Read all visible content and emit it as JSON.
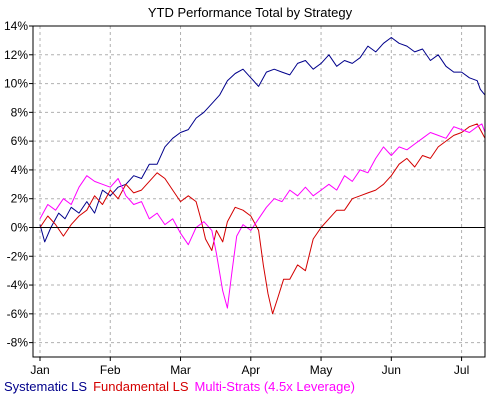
{
  "chart_data": {
    "type": "line",
    "title": "YTD Performance Total by Strategy",
    "xlabel": "",
    "ylabel": "",
    "x_tick_labels": [
      "Jan",
      "Feb",
      "Mar",
      "Apr",
      "May",
      "Jun",
      "Jul"
    ],
    "y_tick_labels": [
      "14%",
      "12%",
      "10%",
      "8%",
      "6%",
      "4%",
      "2%",
      "0%",
      "-2%",
      "-4%",
      "-6%",
      "-8%"
    ],
    "y_ticks": [
      14,
      12,
      10,
      8,
      6,
      4,
      2,
      0,
      -2,
      -4,
      -6,
      -8
    ],
    "ylim": [
      -9.0,
      14.0
    ],
    "xlim": [
      1,
      29.5
    ],
    "grid": true,
    "legend_position": "bottom",
    "series": [
      {
        "name": "Systematic LS",
        "color": "#00008b",
        "points": [
          [
            1.0,
            0.2
          ],
          [
            1.3,
            -1.0
          ],
          [
            1.7,
            0.0
          ],
          [
            2.2,
            1.0
          ],
          [
            2.6,
            0.6
          ],
          [
            3.0,
            1.4
          ],
          [
            3.5,
            1.0
          ],
          [
            4.0,
            1.8
          ],
          [
            4.5,
            1.0
          ],
          [
            5.0,
            2.6
          ],
          [
            5.5,
            2.2
          ],
          [
            6.0,
            2.8
          ],
          [
            6.5,
            3.0
          ],
          [
            7.0,
            3.6
          ],
          [
            7.5,
            3.4
          ],
          [
            8.0,
            4.4
          ],
          [
            8.5,
            4.4
          ],
          [
            9.0,
            5.6
          ],
          [
            9.5,
            6.2
          ],
          [
            10.0,
            6.6
          ],
          [
            10.5,
            6.8
          ],
          [
            11.0,
            7.6
          ],
          [
            11.5,
            8.0
          ],
          [
            12.0,
            8.6
          ],
          [
            12.5,
            9.2
          ],
          [
            13.0,
            10.2
          ],
          [
            13.5,
            10.7
          ],
          [
            14.0,
            11.0
          ],
          [
            14.5,
            10.4
          ],
          [
            15.0,
            9.8
          ],
          [
            15.5,
            10.8
          ],
          [
            16.0,
            11.0
          ],
          [
            16.5,
            10.8
          ],
          [
            17.0,
            10.6
          ],
          [
            17.5,
            11.4
          ],
          [
            18.0,
            11.6
          ],
          [
            18.5,
            11.0
          ],
          [
            19.0,
            11.4
          ],
          [
            19.5,
            12.0
          ],
          [
            20.0,
            11.2
          ],
          [
            20.5,
            11.6
          ],
          [
            21.0,
            11.4
          ],
          [
            21.5,
            11.8
          ],
          [
            22.0,
            12.6
          ],
          [
            22.5,
            12.2
          ],
          [
            23.0,
            12.8
          ],
          [
            23.5,
            13.2
          ],
          [
            24.0,
            12.8
          ],
          [
            24.5,
            12.6
          ],
          [
            25.0,
            12.2
          ],
          [
            25.5,
            12.4
          ],
          [
            26.0,
            11.6
          ],
          [
            26.5,
            12.0
          ],
          [
            27.0,
            11.2
          ],
          [
            27.5,
            10.8
          ],
          [
            28.0,
            10.8
          ],
          [
            28.5,
            10.4
          ],
          [
            29.0,
            10.2
          ],
          [
            29.2,
            9.6
          ],
          [
            29.5,
            9.2
          ]
        ]
      },
      {
        "name": "Fundamental LS",
        "color": "#d40000",
        "points": [
          [
            1.0,
            0.0
          ],
          [
            1.5,
            0.8
          ],
          [
            2.0,
            0.2
          ],
          [
            2.5,
            -0.6
          ],
          [
            3.0,
            0.2
          ],
          [
            3.5,
            0.8
          ],
          [
            4.0,
            1.2
          ],
          [
            4.5,
            2.2
          ],
          [
            5.0,
            1.6
          ],
          [
            5.5,
            2.6
          ],
          [
            6.0,
            2.0
          ],
          [
            6.5,
            3.0
          ],
          [
            7.0,
            2.4
          ],
          [
            7.5,
            2.6
          ],
          [
            8.0,
            3.2
          ],
          [
            8.5,
            3.8
          ],
          [
            9.0,
            3.4
          ],
          [
            9.5,
            2.6
          ],
          [
            10.0,
            1.8
          ],
          [
            10.5,
            2.2
          ],
          [
            11.0,
            1.8
          ],
          [
            11.3,
            0.6
          ],
          [
            11.6,
            -0.8
          ],
          [
            12.0,
            -1.6
          ],
          [
            12.3,
            -0.2
          ],
          [
            12.7,
            -1.0
          ],
          [
            13.0,
            0.4
          ],
          [
            13.5,
            1.4
          ],
          [
            14.0,
            1.2
          ],
          [
            14.5,
            0.8
          ],
          [
            15.0,
            -0.2
          ],
          [
            15.3,
            -2.6
          ],
          [
            15.6,
            -4.6
          ],
          [
            15.9,
            -6.0
          ],
          [
            16.2,
            -5.0
          ],
          [
            16.6,
            -3.6
          ],
          [
            17.0,
            -3.6
          ],
          [
            17.5,
            -2.6
          ],
          [
            18.0,
            -3.0
          ],
          [
            18.5,
            -0.8
          ],
          [
            19.0,
            0.0
          ],
          [
            19.5,
            0.6
          ],
          [
            20.0,
            1.2
          ],
          [
            20.5,
            1.2
          ],
          [
            21.0,
            2.0
          ],
          [
            21.5,
            2.2
          ],
          [
            22.0,
            2.4
          ],
          [
            22.5,
            2.6
          ],
          [
            23.0,
            3.0
          ],
          [
            23.5,
            3.6
          ],
          [
            24.0,
            4.4
          ],
          [
            24.5,
            4.8
          ],
          [
            25.0,
            4.2
          ],
          [
            25.5,
            5.0
          ],
          [
            26.0,
            4.8
          ],
          [
            26.5,
            5.6
          ],
          [
            27.0,
            6.0
          ],
          [
            27.5,
            6.4
          ],
          [
            28.0,
            6.6
          ],
          [
            28.5,
            7.0
          ],
          [
            29.0,
            7.2
          ],
          [
            29.3,
            6.6
          ],
          [
            29.5,
            6.2
          ]
        ]
      },
      {
        "name": "Multi-Strats (4.5x Leverage)",
        "color": "#ff00ff",
        "points": [
          [
            1.0,
            0.6
          ],
          [
            1.5,
            1.6
          ],
          [
            2.0,
            1.2
          ],
          [
            2.5,
            2.0
          ],
          [
            3.0,
            1.6
          ],
          [
            3.5,
            2.8
          ],
          [
            4.0,
            3.6
          ],
          [
            4.5,
            3.2
          ],
          [
            5.0,
            3.0
          ],
          [
            5.5,
            2.8
          ],
          [
            6.0,
            3.4
          ],
          [
            6.5,
            2.2
          ],
          [
            7.0,
            1.6
          ],
          [
            7.5,
            1.8
          ],
          [
            8.0,
            0.6
          ],
          [
            8.5,
            1.0
          ],
          [
            9.0,
            0.2
          ],
          [
            9.5,
            0.6
          ],
          [
            10.0,
            -0.4
          ],
          [
            10.5,
            -1.2
          ],
          [
            11.0,
            0.0
          ],
          [
            11.5,
            0.4
          ],
          [
            12.0,
            -0.2
          ],
          [
            12.3,
            -1.8
          ],
          [
            12.7,
            -4.4
          ],
          [
            13.0,
            -5.6
          ],
          [
            13.3,
            -3.0
          ],
          [
            13.6,
            -0.6
          ],
          [
            14.0,
            0.2
          ],
          [
            14.5,
            -0.2
          ],
          [
            15.0,
            0.6
          ],
          [
            15.5,
            1.4
          ],
          [
            16.0,
            2.0
          ],
          [
            16.5,
            1.8
          ],
          [
            17.0,
            2.6
          ],
          [
            17.5,
            2.2
          ],
          [
            18.0,
            2.8
          ],
          [
            18.5,
            2.2
          ],
          [
            19.0,
            2.6
          ],
          [
            19.5,
            3.0
          ],
          [
            20.0,
            2.6
          ],
          [
            20.5,
            3.6
          ],
          [
            21.0,
            3.2
          ],
          [
            21.5,
            4.0
          ],
          [
            22.0,
            3.8
          ],
          [
            22.5,
            4.8
          ],
          [
            23.0,
            5.6
          ],
          [
            23.5,
            5.0
          ],
          [
            24.0,
            5.6
          ],
          [
            24.5,
            5.4
          ],
          [
            25.0,
            5.8
          ],
          [
            25.5,
            6.2
          ],
          [
            26.0,
            6.6
          ],
          [
            26.5,
            6.4
          ],
          [
            27.0,
            6.2
          ],
          [
            27.5,
            7.0
          ],
          [
            28.0,
            6.8
          ],
          [
            28.5,
            6.6
          ],
          [
            29.0,
            7.0
          ],
          [
            29.3,
            7.2
          ],
          [
            29.5,
            6.6
          ]
        ]
      }
    ]
  }
}
